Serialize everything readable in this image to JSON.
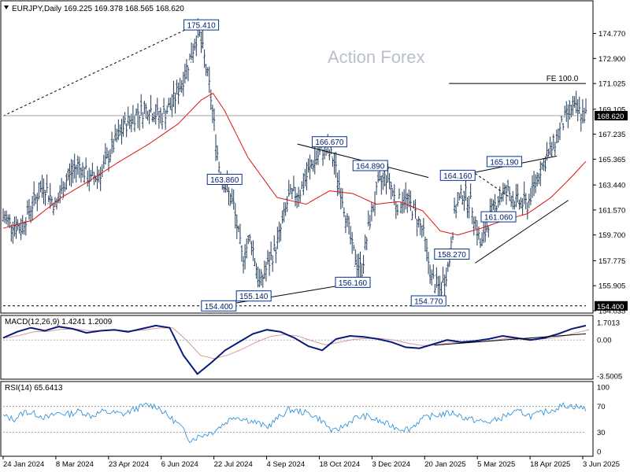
{
  "header": {
    "title": "EURJPY,Daily  169.225 169.378 168.565 168.620",
    "dropdown_icon": "triangle-down-icon"
  },
  "watermark": "Action Forex",
  "fe_label": "FE 100.0",
  "indicators": {
    "macd_label": "MACD(12,26,9) 1.4241 1.2009",
    "rsi_label": "RSI(14) 65.6413"
  },
  "colors": {
    "price": "#1f3a5a",
    "ema": "#e01010",
    "macd": "#0a1a7a",
    "signal": "#d79a9a",
    "rsi": "#1f8ad8",
    "trendline": "#000000",
    "price_badge_bg": "#000000",
    "level_box_border": "#003399"
  },
  "chart_data": [
    {
      "type": "bar",
      "name": "EURJPY Daily OHLC",
      "xlabel": "",
      "ylabel": "",
      "ylim": [
        154.035,
        176.8
      ],
      "x_tick_labels": [
        "24 Jan 2024",
        "8 Mar 2024",
        "23 Apr 2024",
        "6 Jun 2024",
        "22 Jul 2024",
        "4 Sep 2024",
        "18 Oct 2024",
        "3 Dec 2024",
        "20 Jan 2025",
        "5 Mar 2025",
        "18 Apr 2025",
        "3 Jun 2025"
      ],
      "y_tick_labels": [
        "174.770",
        "172.900",
        "171.025",
        "169.105",
        "167.235",
        "165.365",
        "163.440",
        "161.570",
        "159.700",
        "157.775",
        "155.905",
        "154.035"
      ],
      "current_price": "168.620",
      "key_level": "154.400",
      "labeled_levels": [
        {
          "label": "175.410",
          "x_idx": 0.34,
          "value": 175.41
        },
        {
          "label": "163.860",
          "x_idx": 0.38,
          "value": 163.86
        },
        {
          "label": "166.670",
          "x_idx": 0.56,
          "value": 166.67
        },
        {
          "label": "164.890",
          "x_idx": 0.63,
          "value": 164.89
        },
        {
          "label": "164.160",
          "x_idx": 0.78,
          "value": 164.16
        },
        {
          "label": "165.190",
          "x_idx": 0.86,
          "value": 165.19
        },
        {
          "label": "161.060",
          "x_idx": 0.85,
          "value": 161.06
        },
        {
          "label": "158.270",
          "x_idx": 0.77,
          "value": 158.27
        },
        {
          "label": "156.160",
          "x_idx": 0.6,
          "value": 156.16
        },
        {
          "label": "155.140",
          "x_idx": 0.43,
          "value": 155.14
        },
        {
          "label": "154.400",
          "x_idx": 0.37,
          "value": 154.4
        },
        {
          "label": "154.770",
          "x_idx": 0.73,
          "value": 154.77
        }
      ],
      "fe_level": 171.025,
      "close_path": [
        [
          0,
          161.0
        ],
        [
          0.03,
          160.2
        ],
        [
          0.05,
          162.0
        ],
        [
          0.07,
          163.5
        ],
        [
          0.09,
          161.8
        ],
        [
          0.11,
          164.0
        ],
        [
          0.13,
          165.0
        ],
        [
          0.15,
          163.8
        ],
        [
          0.17,
          164.5
        ],
        [
          0.19,
          166.5
        ],
        [
          0.21,
          168.0
        ],
        [
          0.23,
          168.8
        ],
        [
          0.25,
          169.2
        ],
        [
          0.27,
          168.5
        ],
        [
          0.29,
          169.5
        ],
        [
          0.31,
          171.5
        ],
        [
          0.325,
          173.5
        ],
        [
          0.335,
          175.0
        ],
        [
          0.345,
          173.0
        ],
        [
          0.355,
          170.5
        ],
        [
          0.37,
          165.0
        ],
        [
          0.38,
          163.5
        ],
        [
          0.395,
          162.0
        ],
        [
          0.41,
          158.0
        ],
        [
          0.425,
          159.5
        ],
        [
          0.44,
          156.0
        ],
        [
          0.455,
          157.5
        ],
        [
          0.47,
          159.0
        ],
        [
          0.49,
          162.5
        ],
        [
          0.51,
          163.0
        ],
        [
          0.53,
          165.0
        ],
        [
          0.55,
          166.2
        ],
        [
          0.565,
          165.5
        ],
        [
          0.58,
          163.0
        ],
        [
          0.6,
          158.5
        ],
        [
          0.615,
          157.0
        ],
        [
          0.63,
          161.0
        ],
        [
          0.645,
          163.5
        ],
        [
          0.66,
          164.2
        ],
        [
          0.675,
          162.0
        ],
        [
          0.69,
          162.5
        ],
        [
          0.705,
          161.5
        ],
        [
          0.72,
          160.0
        ],
        [
          0.735,
          156.5
        ],
        [
          0.75,
          155.5
        ],
        [
          0.765,
          157.5
        ],
        [
          0.775,
          161.5
        ],
        [
          0.79,
          163.0
        ],
        [
          0.805,
          161.8
        ],
        [
          0.82,
          158.8
        ],
        [
          0.835,
          161.0
        ],
        [
          0.85,
          162.5
        ],
        [
          0.865,
          163.0
        ],
        [
          0.88,
          162.2
        ],
        [
          0.9,
          162.0
        ],
        [
          0.92,
          164.5
        ],
        [
          0.94,
          166.0
        ],
        [
          0.96,
          168.0
        ],
        [
          0.975,
          169.2
        ],
        [
          1.0,
          168.62
        ]
      ],
      "ema_path": [
        [
          0,
          160.2
        ],
        [
          0.05,
          160.8
        ],
        [
          0.1,
          162.5
        ],
        [
          0.15,
          163.8
        ],
        [
          0.2,
          165.2
        ],
        [
          0.25,
          166.5
        ],
        [
          0.3,
          168.0
        ],
        [
          0.34,
          169.8
        ],
        [
          0.36,
          170.3
        ],
        [
          0.38,
          169.0
        ],
        [
          0.42,
          165.5
        ],
        [
          0.47,
          162.5
        ],
        [
          0.52,
          162.0
        ],
        [
          0.56,
          163.0
        ],
        [
          0.6,
          162.8
        ],
        [
          0.64,
          162.0
        ],
        [
          0.68,
          162.2
        ],
        [
          0.72,
          161.5
        ],
        [
          0.75,
          160.0
        ],
        [
          0.78,
          159.7
        ],
        [
          0.82,
          160.2
        ],
        [
          0.86,
          160.8
        ],
        [
          0.9,
          161.3
        ],
        [
          0.94,
          162.5
        ],
        [
          0.97,
          163.8
        ],
        [
          1.0,
          165.2
        ]
      ]
    },
    {
      "type": "line",
      "name": "MACD(12,26,9)",
      "ylim": [
        -3.5005,
        1.7013
      ],
      "y_tick_labels": [
        "1.7013",
        "0.00",
        "-3.5005"
      ],
      "macd_value": 1.4241,
      "signal_value": 1.2009,
      "series": [
        {
          "name": "MACD",
          "values": [
            0.2,
            0.8,
            1.2,
            0.9,
            1.3,
            1.1,
            0.7,
            0.9,
            1.0,
            0.8,
            1.1,
            1.4,
            1.2,
            -1.5,
            -3.3,
            -2.2,
            -1.0,
            -0.2,
            0.6,
            1.0,
            0.8,
            0.2,
            -0.6,
            -1.0,
            0.1,
            0.4,
            0.3,
            0.1,
            -0.2,
            -0.7,
            -0.8,
            -0.4,
            0.0,
            -0.2,
            -0.1,
            0.1,
            0.4,
            0.2,
            0.0,
            0.2,
            0.6,
            1.1,
            1.4
          ]
        }
      ]
    },
    {
      "type": "line",
      "name": "RSI(14)",
      "ylim": [
        0,
        100
      ],
      "y_tick_labels": [
        "100",
        "70",
        "30",
        "0"
      ],
      "value": 65.6413,
      "series": [
        {
          "name": "RSI",
          "values": [
            55,
            50,
            62,
            58,
            52,
            60,
            58,
            63,
            55,
            62,
            60,
            58,
            66,
            72,
            70,
            55,
            42,
            18,
            25,
            30,
            42,
            55,
            50,
            45,
            38,
            52,
            65,
            62,
            58,
            48,
            30,
            40,
            52,
            55,
            48,
            42,
            36,
            35,
            50,
            55,
            58,
            60,
            52,
            48,
            45,
            50,
            58,
            62,
            55,
            60,
            65,
            72,
            70,
            66
          ]
        }
      ]
    }
  ]
}
